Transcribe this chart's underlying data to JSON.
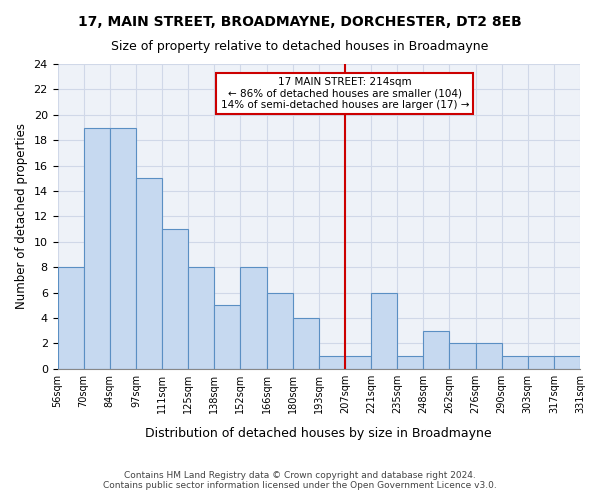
{
  "title1": "17, MAIN STREET, BROADMAYNE, DORCHESTER, DT2 8EB",
  "title2": "Size of property relative to detached houses in Broadmayne",
  "xlabel": "Distribution of detached houses by size in Broadmayne",
  "ylabel": "Number of detached properties",
  "bins": [
    "56sqm",
    "70sqm",
    "84sqm",
    "97sqm",
    "111sqm",
    "125sqm",
    "138sqm",
    "152sqm",
    "166sqm",
    "180sqm",
    "193sqm",
    "207sqm",
    "221sqm",
    "235sqm",
    "248sqm",
    "262sqm",
    "276sqm",
    "290sqm",
    "303sqm",
    "317sqm",
    "331sqm"
  ],
  "values": [
    8,
    19,
    19,
    15,
    11,
    8,
    5,
    8,
    6,
    4,
    1,
    1,
    6,
    1,
    3,
    2,
    2,
    1,
    1,
    1
  ],
  "bar_color": "#c6d9f0",
  "bar_edge_color": "#5a8fc3",
  "grid_color": "#d0d8e8",
  "background_color": "#eef2f8",
  "annotation_box_color": "#cc0000",
  "vline_color": "#cc0000",
  "vline_x_index": 11,
  "annotation_text": "17 MAIN STREET: 214sqm\n← 86% of detached houses are smaller (104)\n14% of semi-detached houses are larger (17) →",
  "footer1": "Contains HM Land Registry data © Crown copyright and database right 2024.",
  "footer2": "Contains public sector information licensed under the Open Government Licence v3.0.",
  "ylim": [
    0,
    24
  ],
  "yticks": [
    0,
    2,
    4,
    6,
    8,
    10,
    12,
    14,
    16,
    18,
    20,
    22,
    24
  ]
}
